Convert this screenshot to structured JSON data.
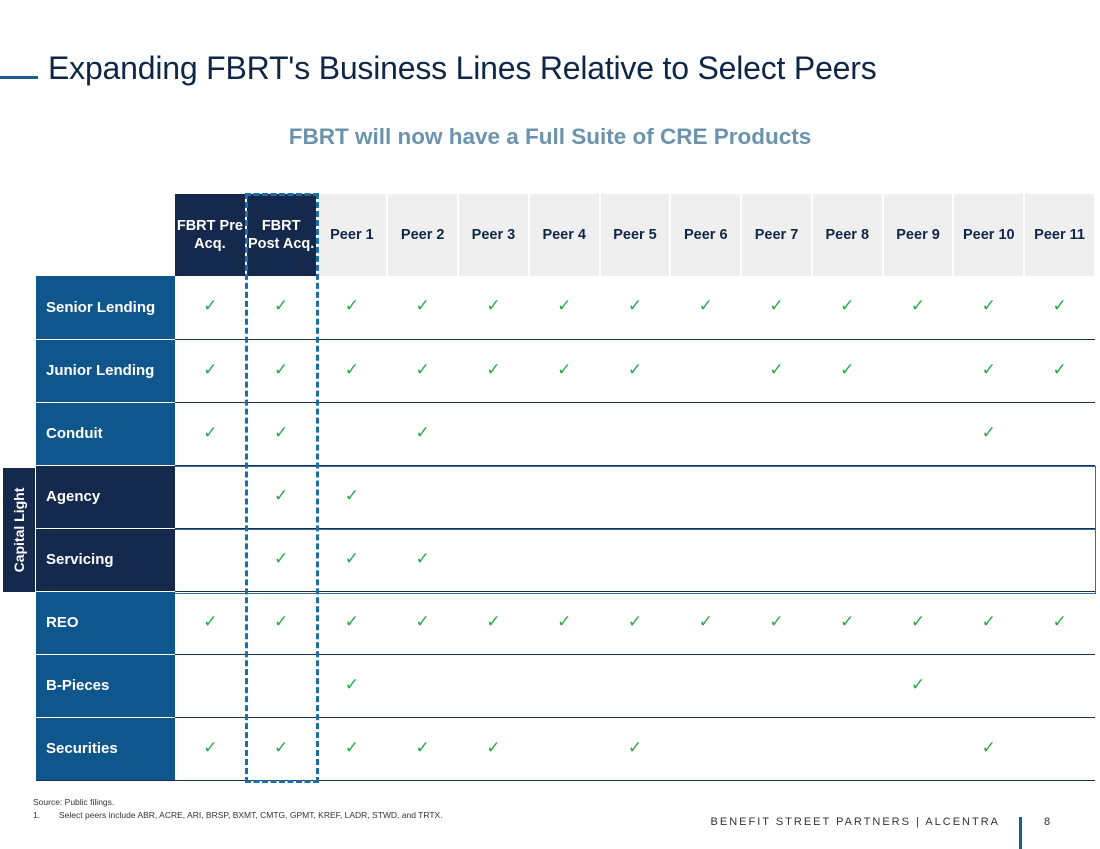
{
  "title": "Expanding FBRT's Business Lines Relative to Select Peers",
  "subtitle": "FBRT will now have a Full Suite of CRE Products",
  "columns": [
    "FBRT Pre Acq.",
    "FBRT Post Acq.",
    "Peer 1",
    "Peer 2",
    "Peer 3",
    "Peer 4",
    "Peer 5",
    "Peer 6",
    "Peer 7",
    "Peer 8",
    "Peer 9",
    "Peer 10",
    "Peer 11"
  ],
  "check_symbol": "✓",
  "group_label": "Capital Light",
  "rows": [
    {
      "label": "Senior Lending",
      "group": "standard",
      "checks": [
        true,
        true,
        true,
        true,
        true,
        true,
        true,
        true,
        true,
        true,
        true,
        true,
        true
      ]
    },
    {
      "label": "Junior Lending",
      "group": "standard",
      "checks": [
        true,
        true,
        true,
        true,
        true,
        true,
        true,
        false,
        true,
        true,
        false,
        true,
        true
      ]
    },
    {
      "label": "Conduit",
      "group": "standard",
      "checks": [
        true,
        true,
        false,
        true,
        false,
        false,
        false,
        false,
        false,
        false,
        false,
        true,
        false
      ]
    },
    {
      "label": "Agency",
      "group": "capital-light",
      "checks": [
        false,
        true,
        true,
        false,
        false,
        false,
        false,
        false,
        false,
        false,
        false,
        false,
        false
      ]
    },
    {
      "label": "Servicing",
      "group": "capital-light",
      "checks": [
        false,
        true,
        true,
        true,
        false,
        false,
        false,
        false,
        false,
        false,
        false,
        false,
        false
      ]
    },
    {
      "label": "REO",
      "group": "standard",
      "checks": [
        true,
        true,
        true,
        true,
        true,
        true,
        true,
        true,
        true,
        true,
        true,
        true,
        true
      ]
    },
    {
      "label": "B-Pieces",
      "group": "standard",
      "checks": [
        false,
        false,
        true,
        false,
        false,
        false,
        false,
        false,
        false,
        false,
        true,
        false,
        false
      ]
    },
    {
      "label": "Securities",
      "group": "standard",
      "checks": [
        true,
        true,
        true,
        true,
        true,
        false,
        true,
        false,
        false,
        false,
        false,
        true,
        false
      ]
    }
  ],
  "footnotes": {
    "source": "Source: Public filings.",
    "note_number": "1.",
    "note_text": "Select peers include ABR, ACRE, ARI, BRSP, BXMT, CMTG, GPMT, KREF, LADR, STWD, and TRTX."
  },
  "footer": {
    "brand": "BENEFIT STREET PARTNERS | ALCENTRA",
    "page_number": "8"
  },
  "colors": {
    "navy": "#15294c",
    "blue": "#0f568d",
    "check_green": "#2aa84a",
    "dashed_highlight": "#1d6ea6",
    "subtitle": "#6b93ad"
  }
}
